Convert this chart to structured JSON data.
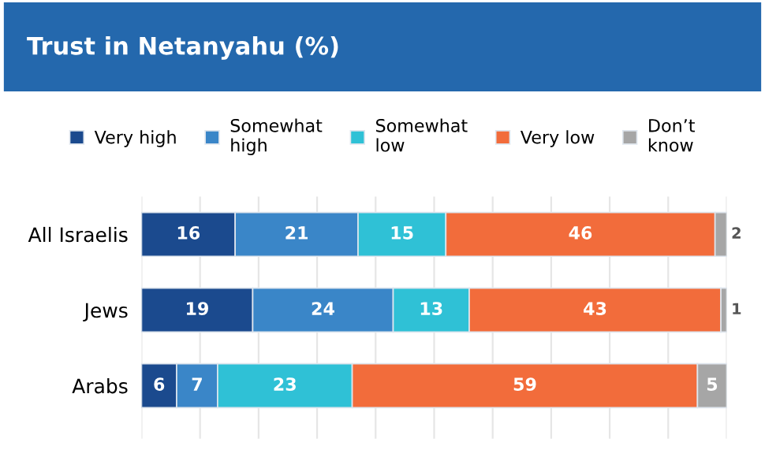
{
  "chart_data": {
    "type": "bar",
    "orientation": "horizontal",
    "stacked": true,
    "title": "Trust in Netanyahu (%)",
    "categories": [
      "All Israelis",
      "Jews",
      "Arabs"
    ],
    "series": [
      {
        "name": "Very high",
        "color": "#1b4a8e",
        "values": [
          16,
          19,
          6
        ]
      },
      {
        "name": "Somewhat high",
        "color": "#3a86c8",
        "values": [
          21,
          24,
          7
        ]
      },
      {
        "name": "Somewhat low",
        "color": "#2fc1d6",
        "values": [
          15,
          13,
          23
        ]
      },
      {
        "name": "Very low",
        "color": "#f26c3b",
        "values": [
          46,
          43,
          59
        ]
      },
      {
        "name": "Don’t know",
        "color": "#a6a6a6",
        "values": [
          2,
          1,
          5
        ]
      }
    ],
    "xlim": [
      0,
      100
    ],
    "xticks": [
      {
        "value": 0,
        "label": null
      },
      {
        "value": 10,
        "label": null
      },
      {
        "value": 20,
        "label": null
      },
      {
        "value": 30,
        "label": null
      },
      {
        "value": 40,
        "label": null
      },
      {
        "value": 50,
        "label": null
      },
      {
        "value": 60,
        "label": null
      },
      {
        "value": 70,
        "label": null
      },
      {
        "value": 80,
        "label": null
      },
      {
        "value": 90,
        "label": null
      },
      {
        "value": 100,
        "label": null
      }
    ],
    "tick_labels": "y",
    "grid": "x",
    "legend": "top",
    "data_labels": true
  }
}
